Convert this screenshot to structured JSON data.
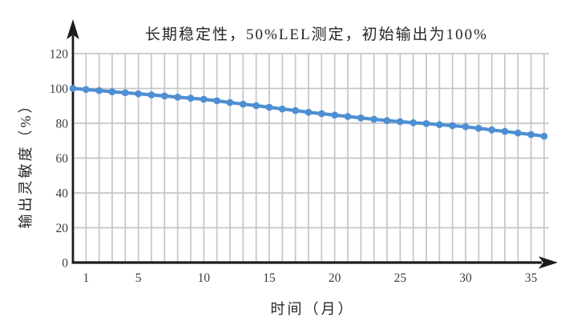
{
  "chart_data": {
    "type": "line",
    "title": "长期稳定性，50%LEL测定，初始输出为100%",
    "xlabel": "时间（月）",
    "ylabel": "输出灵敏度（%）",
    "x": [
      0,
      1,
      2,
      3,
      4,
      5,
      6,
      7,
      8,
      9,
      10,
      11,
      12,
      13,
      14,
      15,
      16,
      17,
      18,
      19,
      20,
      21,
      22,
      23,
      24,
      25,
      26,
      27,
      28,
      29,
      30,
      31,
      32,
      33,
      34,
      35,
      36
    ],
    "series": [
      {
        "name": "输出灵敏度",
        "values": [
          100.0,
          99.4,
          98.8,
          98.1,
          97.5,
          96.9,
          96.3,
          95.7,
          95.0,
          94.4,
          93.8,
          92.9,
          91.9,
          91.0,
          90.1,
          89.2,
          88.2,
          87.3,
          86.3,
          85.5,
          84.7,
          83.9,
          83.1,
          82.3,
          81.5,
          80.9,
          80.3,
          79.8,
          79.2,
          78.6,
          78.0,
          77.1,
          76.2,
          75.3,
          74.4,
          73.5,
          72.6
        ]
      }
    ],
    "x_ticks": [
      1,
      5,
      10,
      15,
      20,
      25,
      30,
      35
    ],
    "y_ticks": [
      0,
      20,
      40,
      60,
      80,
      100,
      120
    ],
    "xlim": [
      0,
      36
    ],
    "ylim": [
      0,
      120
    ],
    "grid": true,
    "legend": "none",
    "colors": {
      "line": "#4e8fd2",
      "grid": "#c6c6c6",
      "axis": "#1c1c1c",
      "text": "#3d3d3d",
      "title": "#262626"
    }
  }
}
